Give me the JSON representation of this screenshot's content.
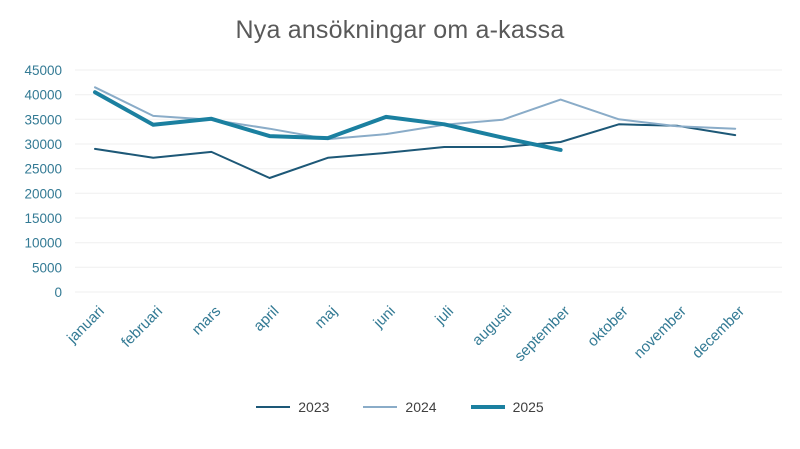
{
  "title": "Nya ansökningar om a-kassa",
  "colors": {
    "title": "#595959",
    "axis_labels": "#337a94",
    "grid": "#efefef",
    "legend_text": "#404040"
  },
  "chart_data": {
    "type": "line",
    "title": "Nya ansökningar om a-kassa",
    "categories": [
      "januari",
      "februari",
      "mars",
      "april",
      "maj",
      "juni",
      "juli",
      "augusti",
      "september",
      "oktober",
      "november",
      "december"
    ],
    "series": [
      {
        "name": "2023",
        "color": "#1d5877",
        "width": 2,
        "values": [
          29000,
          27200,
          28400,
          23100,
          27200,
          28200,
          29400,
          29400,
          30400,
          34000,
          33700,
          31800
        ]
      },
      {
        "name": "2024",
        "color": "#8aacc8",
        "width": 2,
        "values": [
          41500,
          35700,
          34900,
          33100,
          31000,
          32000,
          33900,
          34900,
          39000,
          35000,
          33600,
          33100
        ]
      },
      {
        "name": "2025",
        "color": "#1b80a0",
        "width": 4,
        "values": [
          40500,
          33900,
          35100,
          31600,
          31200,
          35500,
          34000,
          31300,
          28800,
          null,
          null,
          null
        ]
      }
    ],
    "ylim": [
      0,
      45000
    ],
    "ytick_step": 5000,
    "grid": true,
    "legend_position": "bottom"
  }
}
